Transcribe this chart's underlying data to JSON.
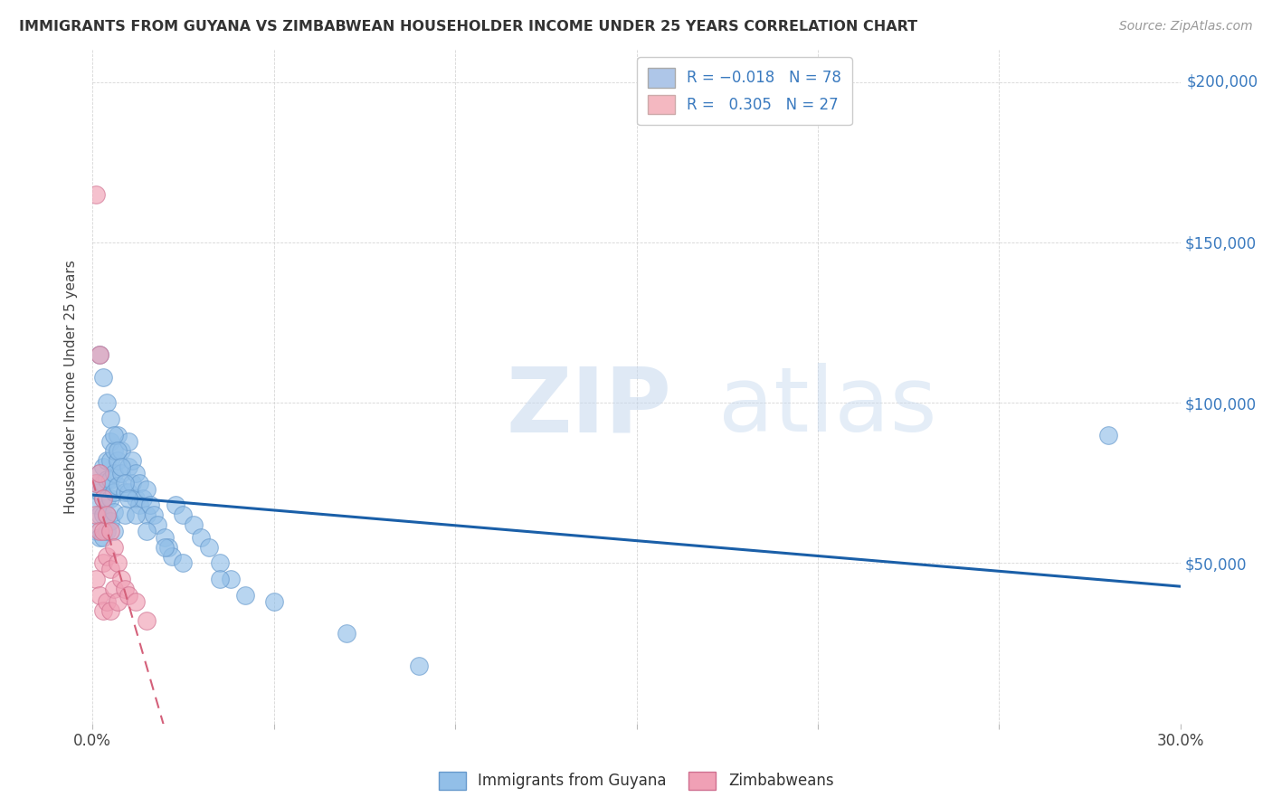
{
  "title": "IMMIGRANTS FROM GUYANA VS ZIMBABWEAN HOUSEHOLDER INCOME UNDER 25 YEARS CORRELATION CHART",
  "source": "Source: ZipAtlas.com",
  "ylabel": "Householder Income Under 25 years",
  "xlim": [
    0.0,
    0.3
  ],
  "ylim": [
    0,
    210000
  ],
  "legend_color1": "#aec6e8",
  "legend_color2": "#f4b8c1",
  "trendline1_color": "#1a5fa8",
  "trendline2_color": "#d4607a",
  "dot_color1": "#92bfe8",
  "dot_color2": "#f0a0b5",
  "dot_edge1": "#6699cc",
  "dot_edge2": "#d07090",
  "background_color": "#ffffff",
  "grid_color": "#cccccc",
  "guyana_x": [
    0.001,
    0.001,
    0.001,
    0.002,
    0.002,
    0.002,
    0.002,
    0.003,
    0.003,
    0.003,
    0.003,
    0.003,
    0.004,
    0.004,
    0.004,
    0.004,
    0.004,
    0.005,
    0.005,
    0.005,
    0.005,
    0.005,
    0.006,
    0.006,
    0.006,
    0.006,
    0.006,
    0.007,
    0.007,
    0.007,
    0.008,
    0.008,
    0.009,
    0.009,
    0.01,
    0.01,
    0.01,
    0.011,
    0.011,
    0.012,
    0.012,
    0.013,
    0.013,
    0.014,
    0.015,
    0.015,
    0.016,
    0.017,
    0.018,
    0.02,
    0.021,
    0.022,
    0.023,
    0.025,
    0.028,
    0.03,
    0.032,
    0.035,
    0.038,
    0.042,
    0.002,
    0.003,
    0.004,
    0.005,
    0.006,
    0.007,
    0.008,
    0.009,
    0.01,
    0.012,
    0.015,
    0.02,
    0.025,
    0.035,
    0.05,
    0.07,
    0.09,
    0.28
  ],
  "guyana_y": [
    75000,
    68000,
    60000,
    78000,
    72000,
    65000,
    58000,
    80000,
    75000,
    70000,
    65000,
    58000,
    82000,
    76000,
    70000,
    65000,
    60000,
    88000,
    82000,
    76000,
    70000,
    63000,
    85000,
    78000,
    72000,
    66000,
    60000,
    90000,
    82000,
    74000,
    85000,
    78000,
    72000,
    65000,
    88000,
    80000,
    72000,
    82000,
    75000,
    78000,
    70000,
    75000,
    68000,
    70000,
    73000,
    65000,
    68000,
    65000,
    62000,
    58000,
    55000,
    52000,
    68000,
    65000,
    62000,
    58000,
    55000,
    50000,
    45000,
    40000,
    115000,
    108000,
    100000,
    95000,
    90000,
    85000,
    80000,
    75000,
    70000,
    65000,
    60000,
    55000,
    50000,
    45000,
    38000,
    28000,
    18000,
    90000
  ],
  "zimb_x": [
    0.001,
    0.001,
    0.001,
    0.001,
    0.002,
    0.002,
    0.002,
    0.002,
    0.003,
    0.003,
    0.003,
    0.003,
    0.004,
    0.004,
    0.004,
    0.005,
    0.005,
    0.005,
    0.006,
    0.006,
    0.007,
    0.007,
    0.008,
    0.009,
    0.01,
    0.012,
    0.015
  ],
  "zimb_y": [
    165000,
    75000,
    65000,
    45000,
    115000,
    78000,
    60000,
    40000,
    70000,
    60000,
    50000,
    35000,
    65000,
    52000,
    38000,
    60000,
    48000,
    35000,
    55000,
    42000,
    50000,
    38000,
    45000,
    42000,
    40000,
    38000,
    32000
  ]
}
